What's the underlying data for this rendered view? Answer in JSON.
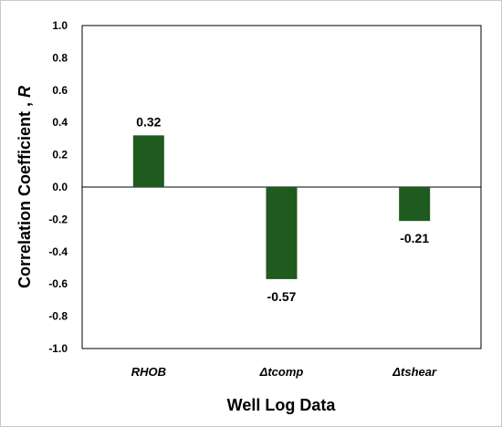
{
  "chart_data": {
    "type": "bar",
    "categories": [
      "RHOB",
      "Δtcomp",
      "Δtshear"
    ],
    "values": [
      0.32,
      -0.57,
      -0.21
    ],
    "data_labels": [
      "0.32",
      "-0.57",
      "-0.21"
    ],
    "xlabel": "Well Log Data",
    "ylabel_text": "Correlation Coefficient , ",
    "ylabel_symbol": "R",
    "ylim": [
      -1.0,
      1.0
    ],
    "yticks": [
      1.0,
      0.8,
      0.6,
      0.4,
      0.2,
      0.0,
      -0.2,
      -0.4,
      -0.6,
      -0.8,
      -1.0
    ],
    "ytick_labels": [
      "1.0",
      "0.8",
      "0.6",
      "0.4",
      "0.2",
      "0.0",
      "-0.2",
      "-0.4",
      "-0.6",
      "-0.8",
      "-1.0"
    ],
    "grid": false,
    "legend": "none",
    "bar_color": "#1f5a1f"
  }
}
